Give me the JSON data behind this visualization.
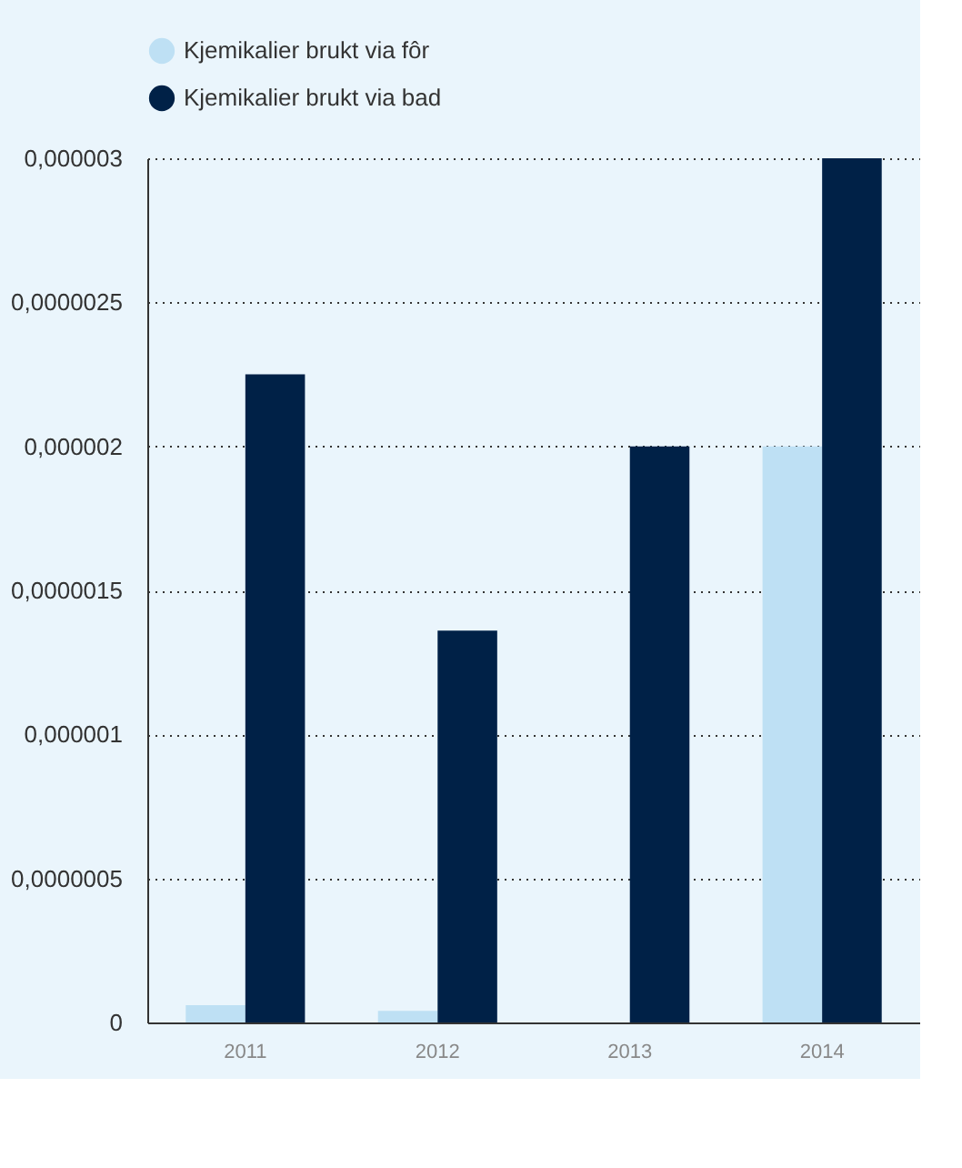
{
  "chart_data": {
    "type": "bar",
    "categories": [
      "2011",
      "2012",
      "2013",
      "2014"
    ],
    "series": [
      {
        "name": "Kjemikalier brukt via fôr",
        "color": "#bee0f4",
        "values": [
          6e-08,
          4e-08,
          0,
          2e-06
        ]
      },
      {
        "name": "Kjemikalier brukt via bad",
        "color": "#002147",
        "values": [
          2.25e-06,
          1.36e-06,
          2e-06,
          3e-06
        ]
      }
    ],
    "ylim": [
      0,
      3e-06
    ],
    "yticks": [
      {
        "value": 0,
        "label": "0"
      },
      {
        "value": 5e-07,
        "label": "0,0000005"
      },
      {
        "value": 1e-06,
        "label": "0,000001"
      },
      {
        "value": 1.5e-06,
        "label": "0,0000015"
      },
      {
        "value": 2e-06,
        "label": "0,000002"
      },
      {
        "value": 2.5e-06,
        "label": "0,0000025"
      },
      {
        "value": 3e-06,
        "label": "0,000003"
      }
    ],
    "grid": "y",
    "legend": "top"
  }
}
